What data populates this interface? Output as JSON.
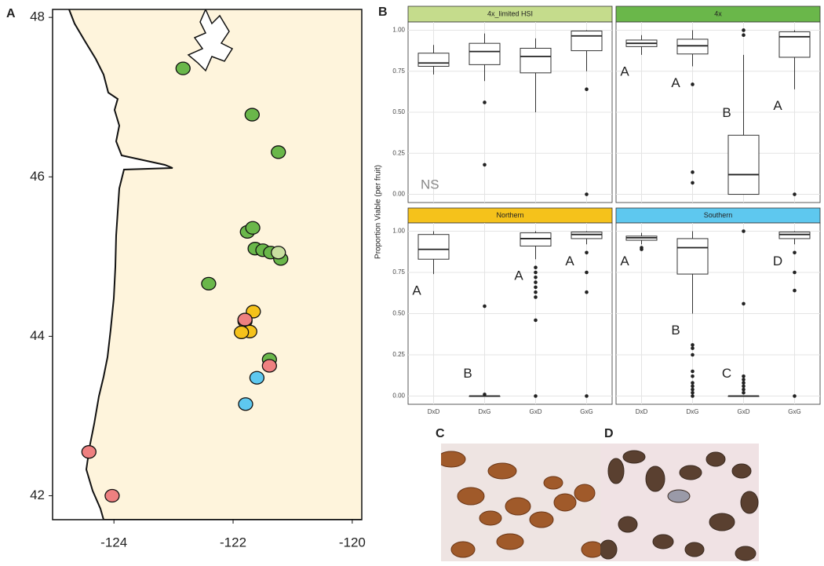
{
  "chart_data": [
    {
      "type": "scatter",
      "panel_label": "A",
      "xlim": [
        -125.03,
        -119.84
      ],
      "ylim": [
        41.7,
        48.1
      ],
      "xticks": [
        -124,
        -122,
        -120
      ],
      "yticks": [
        42,
        44,
        46,
        48
      ],
      "series": [
        {
          "color": "#6ab74a",
          "x": [
            -122.84,
            -121.68,
            -121.24,
            -121.76,
            -121.67,
            -121.63,
            -121.5,
            -121.37,
            -121.2,
            -122.41,
            -121.39
          ],
          "y": [
            47.36,
            46.78,
            46.31,
            45.31,
            45.36,
            45.1,
            45.08,
            45.05,
            44.97,
            44.66,
            43.71
          ]
        },
        {
          "color": "#c8dfa0",
          "x": [
            -121.24
          ],
          "y": [
            45.05
          ]
        },
        {
          "color": "#f5c21b",
          "x": [
            -121.66,
            -121.8,
            -121.72,
            -121.86
          ],
          "y": [
            44.31,
            44.19,
            44.06,
            44.05
          ]
        },
        {
          "color": "#ee8080",
          "x": [
            -121.8,
            -121.39,
            -124.42,
            -124.03
          ],
          "y": [
            44.21,
            43.63,
            42.55,
            42.0
          ]
        },
        {
          "color": "#5ec8ef",
          "x": [
            -121.6,
            -121.79
          ],
          "y": [
            43.48,
            43.15
          ]
        }
      ]
    },
    {
      "type": "box",
      "panel_label": "B",
      "y_label": "Proportion Viable (per fruit)",
      "categories": [
        "DxD",
        "DxG",
        "GxD",
        "GxG"
      ],
      "ylim": [
        -0.05,
        1.05
      ],
      "yticks": [
        {
          "value": 0,
          "label": "0.00"
        },
        {
          "value": 0.25,
          "label": "0.25"
        },
        {
          "value": 0.5,
          "label": "0.50"
        },
        {
          "value": 0.75,
          "label": "0.75"
        },
        {
          "value": 1,
          "label": "1.00"
        }
      ],
      "grid": true,
      "facets": [
        {
          "title": "4x_limited HSI",
          "color": "#c5dc8c",
          "annotation": "NS",
          "boxes": [
            {
              "whisker_low": 0.73,
              "q1": 0.78,
              "median": 0.8,
              "q3": 0.86,
              "whisker_high": 0.91,
              "outliers": []
            },
            {
              "whisker_low": 0.69,
              "q1": 0.79,
              "median": 0.87,
              "q3": 0.92,
              "whisker_high": 0.98,
              "outliers": [
                0.56,
                0.18
              ]
            },
            {
              "whisker_low": 0.5,
              "q1": 0.74,
              "median": 0.84,
              "q3": 0.89,
              "whisker_high": 0.95,
              "outliers": []
            },
            {
              "whisker_low": 0.75,
              "q1": 0.875,
              "median": 0.965,
              "q3": 0.995,
              "whisker_high": 1.0,
              "outliers": [
                0.64,
                0
              ]
            }
          ]
        },
        {
          "title": "4x",
          "color": "#6ab74a",
          "boxes": [
            {
              "whisker_low": 0.85,
              "q1": 0.9,
              "median": 0.92,
              "q3": 0.94,
              "whisker_high": 0.97,
              "outliers": [],
              "letter": "A"
            },
            {
              "whisker_low": 0.78,
              "q1": 0.855,
              "median": 0.905,
              "q3": 0.945,
              "whisker_high": 1.0,
              "outliers": [
                0.67,
                0.135,
                0.07
              ],
              "letter": "A"
            },
            {
              "whisker_low": 0,
              "q1": 0,
              "median": 0.12,
              "q3": 0.36,
              "whisker_high": 0.85,
              "outliers": [
                0.97,
                1.0
              ],
              "letter": "B"
            },
            {
              "whisker_low": 0.64,
              "q1": 0.835,
              "median": 0.96,
              "q3": 0.99,
              "whisker_high": 1.0,
              "outliers": [
                0
              ],
              "letter": "A"
            }
          ]
        },
        {
          "title": "Northern",
          "color": "#f5c21b",
          "boxes": [
            {
              "whisker_low": 0.74,
              "q1": 0.83,
              "median": 0.89,
              "q3": 0.98,
              "whisker_high": 1.0,
              "outliers": [],
              "letter": "A"
            },
            {
              "whisker_low": 0,
              "q1": 0,
              "median": 0,
              "q3": 0,
              "whisker_high": 0,
              "outliers": [
                0.545,
                0.01
              ],
              "letter": "B"
            },
            {
              "whisker_low": 0.83,
              "q1": 0.91,
              "median": 0.955,
              "q3": 0.99,
              "whisker_high": 1.0,
              "outliers": [
                0.78,
                0.75,
                0.72,
                0.69,
                0.66,
                0.63,
                0.6,
                0.46,
                0
              ],
              "letter": "A"
            },
            {
              "whisker_low": 0.92,
              "q1": 0.955,
              "median": 0.98,
              "q3": 0.995,
              "whisker_high": 1.0,
              "outliers": [
                0.87,
                0.75,
                0.63,
                0
              ],
              "letter": "A"
            }
          ]
        },
        {
          "title": "Southern",
          "color": "#5ec8ef",
          "boxes": [
            {
              "whisker_low": 0.92,
              "q1": 0.945,
              "median": 0.96,
              "q3": 0.97,
              "whisker_high": 0.99,
              "outliers": [
                0.9,
                0.89
              ],
              "letter": "A"
            },
            {
              "whisker_low": 0.5,
              "q1": 0.74,
              "median": 0.9,
              "q3": 0.955,
              "whisker_high": 1.0,
              "outliers": [
                0.31,
                0.29,
                0.25,
                0.15,
                0.12,
                0.08,
                0.06,
                0.04,
                0.02,
                0
              ],
              "letter": "B"
            },
            {
              "whisker_low": 0,
              "q1": 0,
              "median": 0,
              "q3": 0,
              "whisker_high": 0,
              "outliers": [
                1.0,
                0.56,
                0.12,
                0.1,
                0.08,
                0.06,
                0.04,
                0.02
              ],
              "letter": "C"
            },
            {
              "whisker_low": 0.92,
              "q1": 0.955,
              "median": 0.98,
              "q3": 0.995,
              "whisker_high": 1.0,
              "outliers": [
                0.87,
                0.75,
                0.64,
                0
              ],
              "letter": "D"
            }
          ]
        }
      ]
    }
  ],
  "photos": [
    {
      "label": "C"
    },
    {
      "label": "D"
    }
  ]
}
